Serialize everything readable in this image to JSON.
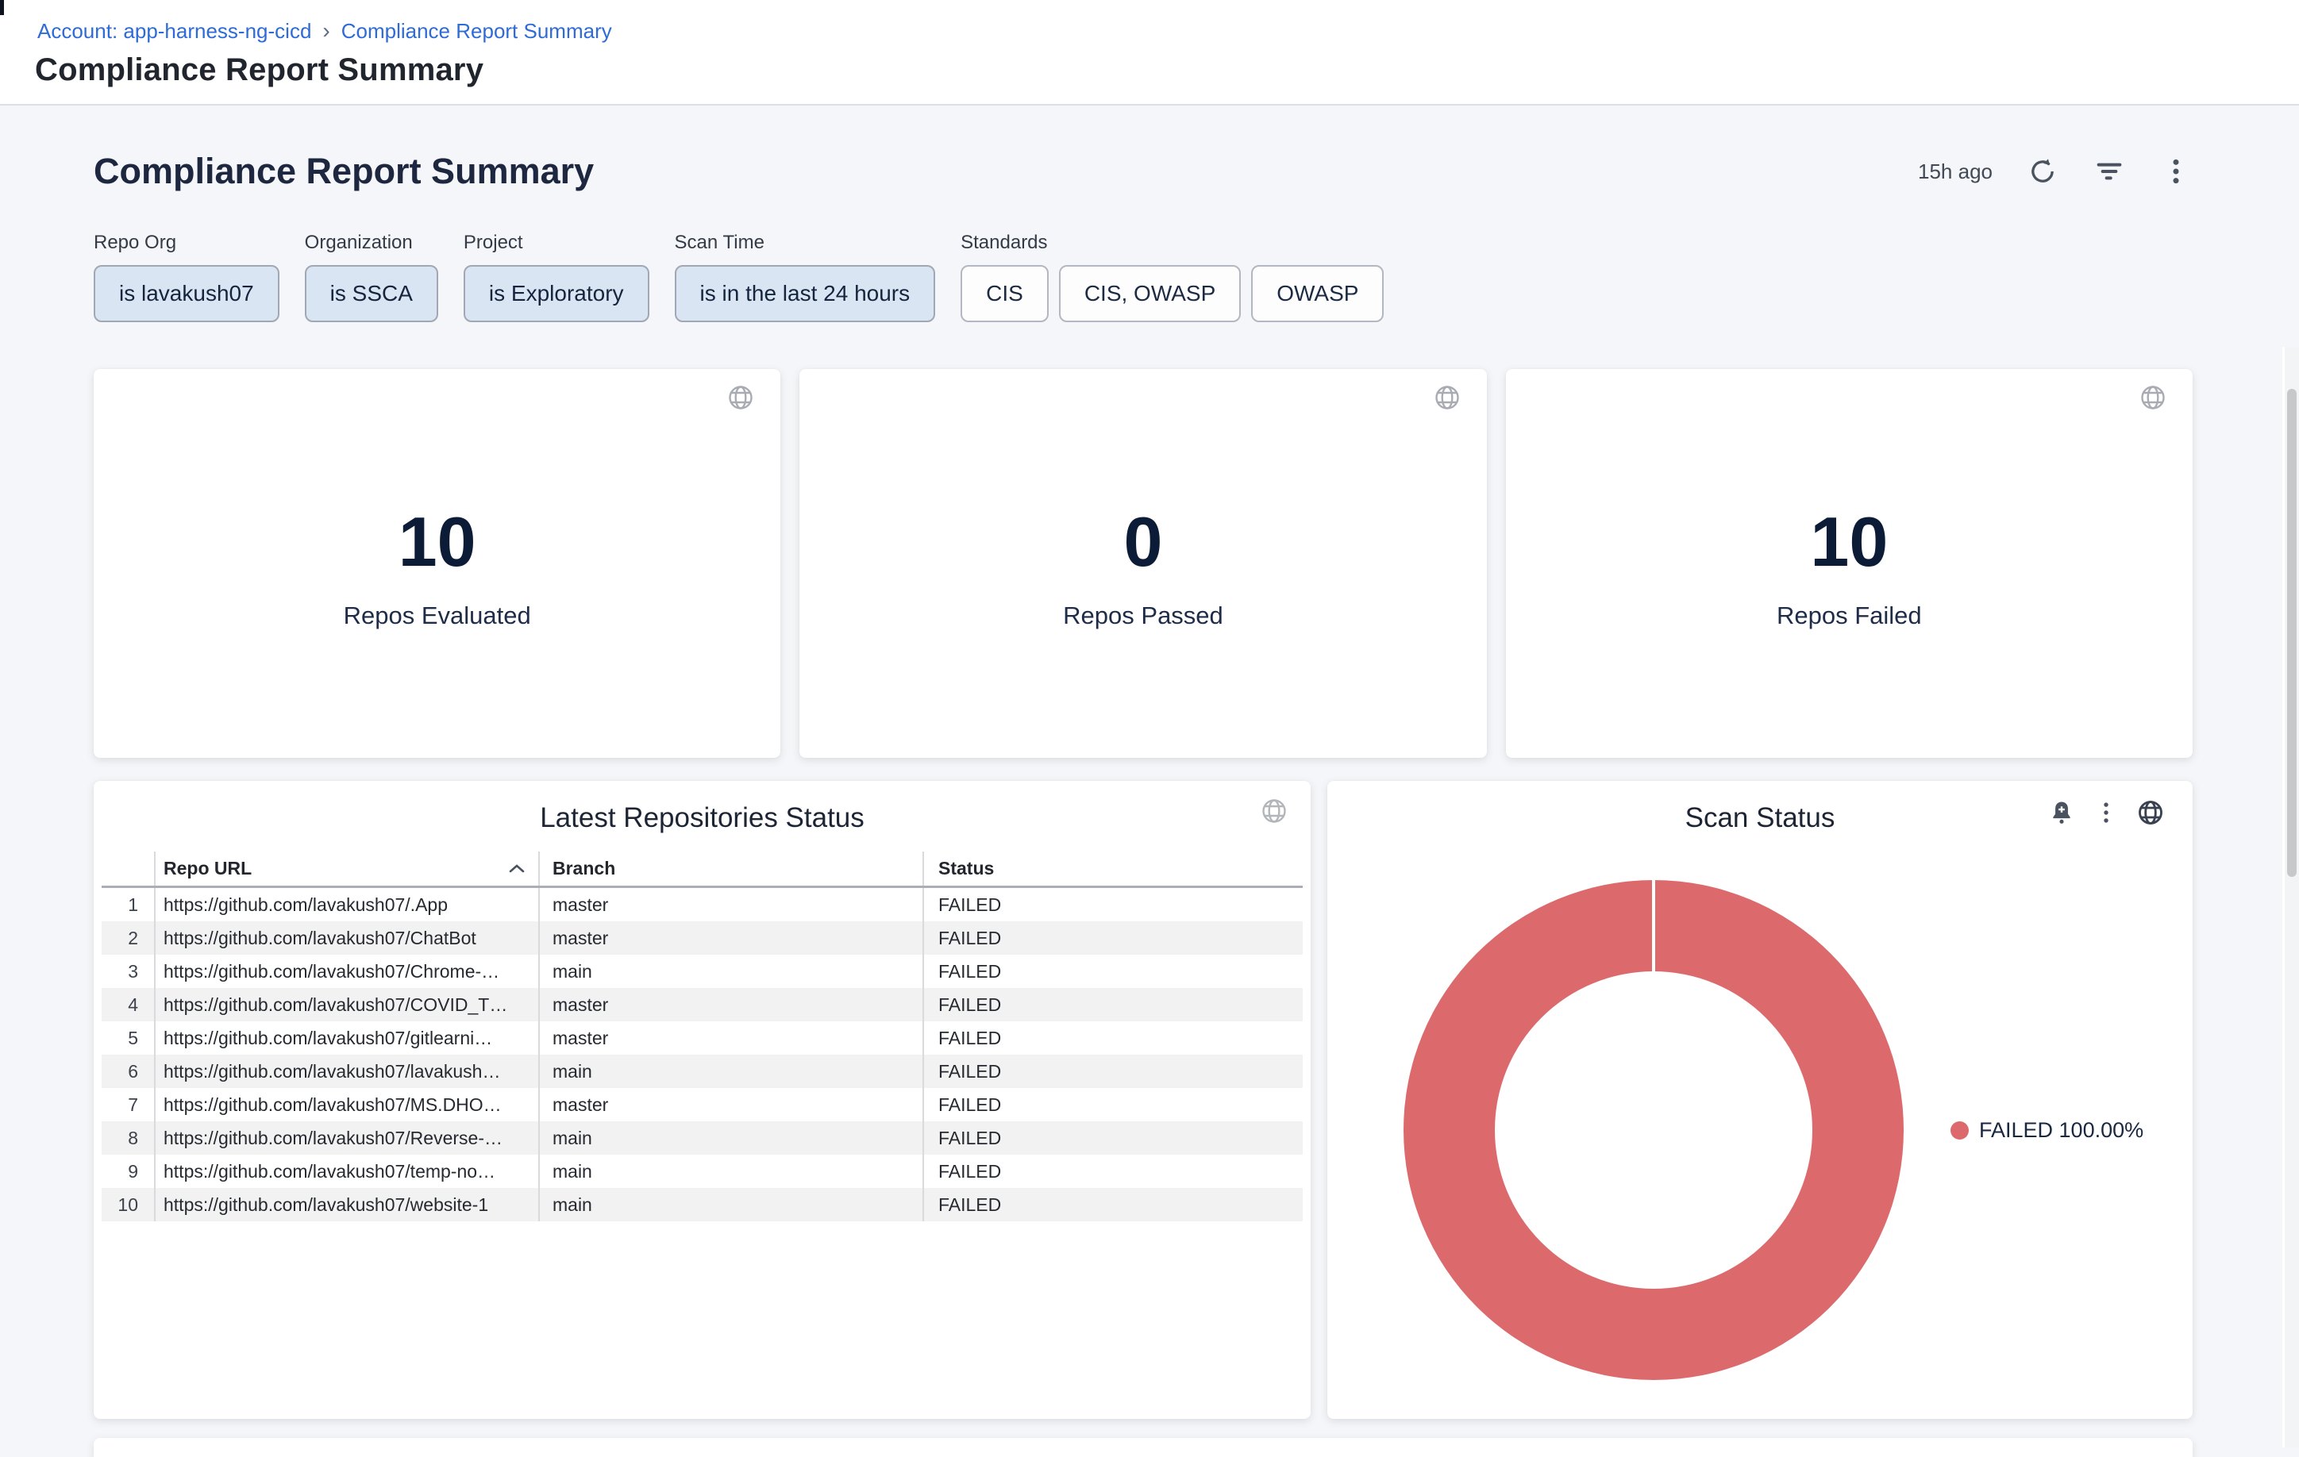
{
  "app_header": {
    "breadcrumb": {
      "account_link": "Account: app-harness-ng-cicd",
      "separator": "›",
      "current_page": "Compliance Report Summary"
    },
    "page_title": "Compliance Report Summary"
  },
  "dashboard": {
    "title": "Compliance Report Summary",
    "last_refreshed": "15h ago",
    "filters": [
      {
        "label": "Repo Org",
        "value": "is lavakush07"
      },
      {
        "label": "Organization",
        "value": "is SSCA"
      },
      {
        "label": "Project",
        "value": "is Exploratory"
      },
      {
        "label": "Scan Time",
        "value": "is in the last 24 hours"
      },
      {
        "label": "Standards",
        "values": [
          "CIS",
          "CIS, OWASP",
          "OWASP"
        ]
      }
    ],
    "stats": [
      {
        "value": "10",
        "label": "Repos Evaluated"
      },
      {
        "value": "0",
        "label": "Repos Passed"
      },
      {
        "value": "10",
        "label": "Repos Failed"
      }
    ],
    "table": {
      "title": "Latest Repositories Status",
      "columns": {
        "repo_url": "Repo URL",
        "branch": "Branch",
        "status": "Status"
      },
      "rows": [
        {
          "num": "1",
          "url": "https://github.com/lavakush07/.App",
          "branch": "master",
          "status": "FAILED"
        },
        {
          "num": "2",
          "url": "https://github.com/lavakush07/ChatBot",
          "branch": "master",
          "status": "FAILED"
        },
        {
          "num": "3",
          "url": "https://github.com/lavakush07/Chrome-…",
          "branch": "main",
          "status": "FAILED"
        },
        {
          "num": "4",
          "url": "https://github.com/lavakush07/COVID_T…",
          "branch": "master",
          "status": "FAILED"
        },
        {
          "num": "5",
          "url": "https://github.com/lavakush07/gitlearni…",
          "branch": "master",
          "status": "FAILED"
        },
        {
          "num": "6",
          "url": "https://github.com/lavakush07/lavakush…",
          "branch": "main",
          "status": "FAILED"
        },
        {
          "num": "7",
          "url": "https://github.com/lavakush07/MS.DHO…",
          "branch": "master",
          "status": "FAILED"
        },
        {
          "num": "8",
          "url": "https://github.com/lavakush07/Reverse-…",
          "branch": "main",
          "status": "FAILED"
        },
        {
          "num": "9",
          "url": "https://github.com/lavakush07/temp-no…",
          "branch": "main",
          "status": "FAILED"
        },
        {
          "num": "10",
          "url": "https://github.com/lavakush07/website-1",
          "branch": "main",
          "status": "FAILED"
        }
      ]
    }
  },
  "chart_data": {
    "type": "pie",
    "title": "Scan Status",
    "labels": [
      "FAILED"
    ],
    "values": [
      100.0
    ],
    "colors": [
      "#dc6a6d"
    ],
    "donut": true,
    "inner_radius_pct": 63,
    "legend_position": "right",
    "legend_label": "FAILED 100.00%"
  },
  "icons": {
    "breadcrumb_separator": "chevron-right-icon",
    "dashboard_actions": [
      "refresh-icon",
      "filter-icon",
      "kebab-menu-icon"
    ],
    "stat_card_overlay": "globe-icon",
    "table_card_overlay": "globe-icon",
    "scan_card": [
      "alert-bell-icon",
      "kebab-menu-icon",
      "globe-icon"
    ],
    "table_sort": "sort-ascending-icon"
  },
  "colors": {
    "link_blue": "#2e6bd6",
    "selected_chip_bg": "#d9e5f2",
    "failed_red": "#dc6a6d",
    "page_bg": "#f4f6f9",
    "text_dark": "#1f2433"
  }
}
